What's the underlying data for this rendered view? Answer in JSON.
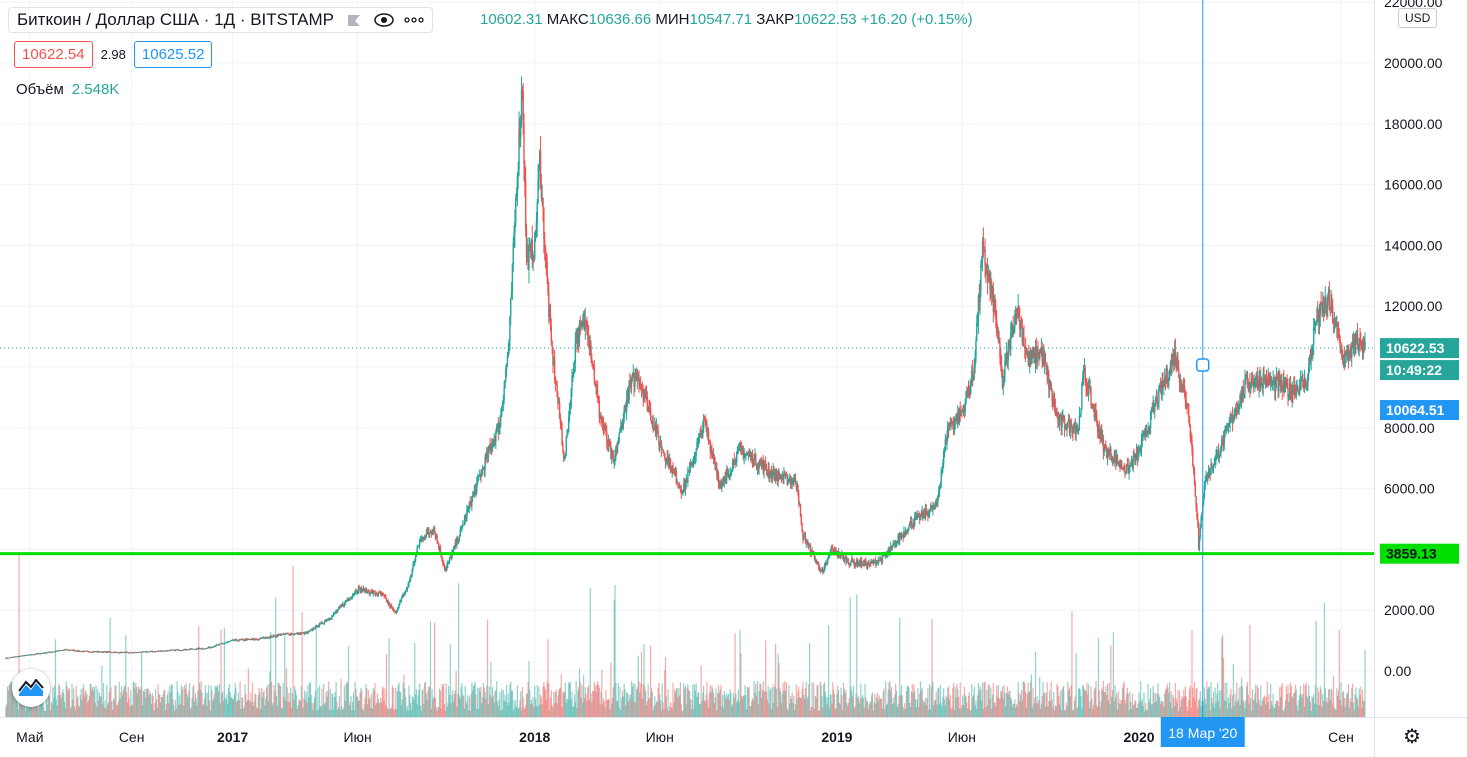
{
  "legend": {
    "symbol": "Биткоин / Доллар США · 1Д · BITSTAMP",
    "flag_icon": "flag-icon",
    "eye_icon": "eye-icon",
    "more_icon": "more-icon"
  },
  "ohlc": {
    "open": "10602.31",
    "high_label": "МАКС",
    "high": "10636.66",
    "low_label": "МИН",
    "low": "10547.71",
    "close_label": "ЗАКР",
    "close": "10622.53",
    "change": "+16.20 (+0.15%)"
  },
  "quote": {
    "bid": "10622.54",
    "spread": "2.98",
    "ask": "10625.52"
  },
  "volume": {
    "label": "Объём",
    "value": "2.548K"
  },
  "currency": "USD",
  "settings_icon": "gear-icon",
  "colors": {
    "up": "#26a69a",
    "down": "#ef5350",
    "hline": "#00e000",
    "cross": "#2196f3",
    "last": "#26a69a"
  },
  "chart_data": {
    "type": "candlestick",
    "x_ticks": [
      "Май",
      "Сен",
      "2017",
      "Июн",
      "2018",
      "Июн",
      "2019",
      "Июн",
      "2020",
      "Сен"
    ],
    "x_tick_dates": [
      "2016-05-01",
      "2016-09-01",
      "2017-01-01",
      "2017-06-01",
      "2018-01-01",
      "2018-06-01",
      "2019-01-01",
      "2019-06-01",
      "2020-01-01",
      "2020-09-01"
    ],
    "x_range": [
      "2016-04-01",
      "2020-09-30"
    ],
    "y_ticks": [
      "22000.00",
      "20000.00",
      "18000.00",
      "16000.00",
      "14000.00",
      "12000.00",
      "10000.00",
      "8000.00",
      "6000.00",
      "4000.00",
      "2000.00",
      "0.00"
    ],
    "ylim": [
      -1500,
      22000
    ],
    "price_series": [
      [
        "2016-04-01",
        420
      ],
      [
        "2016-06-15",
        700
      ],
      [
        "2016-07-01",
        650
      ],
      [
        "2016-09-01",
        600
      ],
      [
        "2016-12-01",
        750
      ],
      [
        "2017-01-01",
        1000
      ],
      [
        "2017-02-01",
        1050
      ],
      [
        "2017-03-01",
        1200
      ],
      [
        "2017-04-01",
        1250
      ],
      [
        "2017-05-01",
        1800
      ],
      [
        "2017-06-01",
        2700
      ],
      [
        "2017-07-01",
        2500
      ],
      [
        "2017-07-16",
        1900
      ],
      [
        "2017-08-01",
        2800
      ],
      [
        "2017-08-15",
        4300
      ],
      [
        "2017-09-01",
        4700
      ],
      [
        "2017-09-15",
        3300
      ],
      [
        "2017-10-01",
        4400
      ],
      [
        "2017-10-20",
        5900
      ],
      [
        "2017-11-01",
        6800
      ],
      [
        "2017-11-20",
        8200
      ],
      [
        "2017-12-01",
        10800
      ],
      [
        "2017-12-10",
        16000
      ],
      [
        "2017-12-17",
        19400
      ],
      [
        "2017-12-22",
        13500
      ],
      [
        "2018-01-01",
        14000
      ],
      [
        "2018-01-07",
        16800
      ],
      [
        "2018-01-20",
        11000
      ],
      [
        "2018-02-06",
        6900
      ],
      [
        "2018-02-20",
        11000
      ],
      [
        "2018-03-05",
        11500
      ],
      [
        "2018-03-20",
        8500
      ],
      [
        "2018-04-06",
        6800
      ],
      [
        "2018-04-25",
        9300
      ],
      [
        "2018-05-05",
        9800
      ],
      [
        "2018-06-01",
        7500
      ],
      [
        "2018-06-29",
        5900
      ],
      [
        "2018-07-25",
        8200
      ],
      [
        "2018-08-14",
        6000
      ],
      [
        "2018-09-05",
        7300
      ],
      [
        "2018-10-15",
        6500
      ],
      [
        "2018-11-14",
        6200
      ],
      [
        "2018-11-20",
        4500
      ],
      [
        "2018-12-15",
        3200
      ],
      [
        "2018-12-25",
        4000
      ],
      [
        "2019-01-15",
        3600
      ],
      [
        "2019-02-10",
        3500
      ],
      [
        "2019-03-01",
        3800
      ],
      [
        "2019-04-02",
        4900
      ],
      [
        "2019-05-01",
        5400
      ],
      [
        "2019-05-15",
        8000
      ],
      [
        "2019-06-01",
        8500
      ],
      [
        "2019-06-15",
        9800
      ],
      [
        "2019-06-26",
        13800
      ],
      [
        "2019-07-10",
        12000
      ],
      [
        "2019-07-20",
        9500
      ],
      [
        "2019-08-06",
        12000
      ],
      [
        "2019-08-20",
        10200
      ],
      [
        "2019-09-05",
        10500
      ],
      [
        "2019-09-25",
        8200
      ],
      [
        "2019-10-20",
        8000
      ],
      [
        "2019-10-26",
        9800
      ],
      [
        "2019-11-20",
        7300
      ],
      [
        "2019-12-18",
        6600
      ],
      [
        "2020-01-01",
        7200
      ],
      [
        "2020-01-20",
        8700
      ],
      [
        "2020-02-13",
        10400
      ],
      [
        "2020-03-01",
        8600
      ],
      [
        "2020-03-12",
        4800
      ],
      [
        "2020-03-13",
        4000
      ],
      [
        "2020-03-20",
        6200
      ],
      [
        "2020-04-06",
        7200
      ],
      [
        "2020-04-30",
        8800
      ],
      [
        "2020-05-10",
        9500
      ],
      [
        "2020-06-01",
        9600
      ],
      [
        "2020-07-01",
        9200
      ],
      [
        "2020-07-22",
        9500
      ],
      [
        "2020-08-01",
        11500
      ],
      [
        "2020-08-17",
        12200
      ],
      [
        "2020-09-05",
        10200
      ],
      [
        "2020-09-20",
        10800
      ],
      [
        "2020-09-30",
        10622
      ]
    ],
    "last_price": "10622.53",
    "countdown": "10:49:22",
    "crosshair_price": "10064.51",
    "crosshair_date": "18 Мар '20",
    "hline_price": "3859.13"
  }
}
